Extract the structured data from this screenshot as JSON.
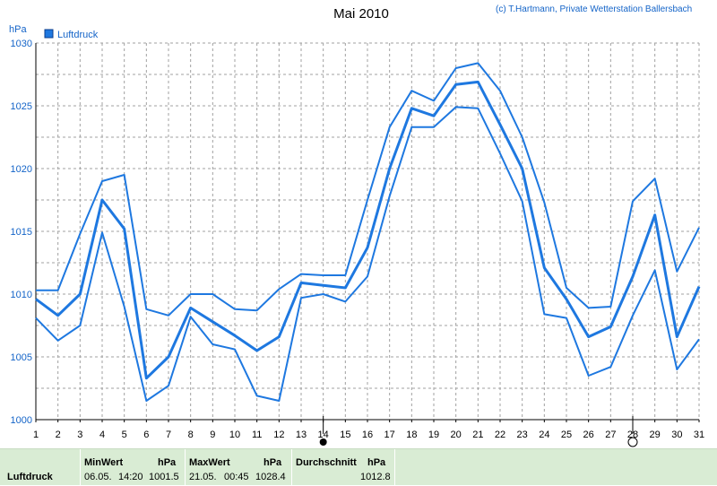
{
  "chart_data": {
    "type": "line",
    "title": "Mai 2010",
    "copyright": "(c) T.Hartmann, Private Wetterstation Ballersbach",
    "ylabel": "hPa",
    "ylim": [
      1000,
      1030
    ],
    "yticks": [
      1000,
      1005,
      1010,
      1015,
      1020,
      1025,
      1030
    ],
    "x": [
      1,
      2,
      3,
      4,
      5,
      6,
      7,
      8,
      9,
      10,
      11,
      12,
      13,
      14,
      15,
      16,
      17,
      18,
      19,
      20,
      21,
      22,
      23,
      24,
      25,
      26,
      27,
      28,
      29,
      30,
      31
    ],
    "grid": true,
    "legend": {
      "position": "top-left",
      "label": "Luftdruck",
      "color": "#1e78e0"
    },
    "series": [
      {
        "name": "Luftdruck",
        "role": "mean",
        "values": [
          1009.6,
          1008.3,
          1010.0,
          1017.5,
          1015.2,
          1003.3,
          1005.0,
          1008.9,
          1007.8,
          1006.7,
          1005.5,
          1006.6,
          1010.9,
          1010.7,
          1010.5,
          1013.7,
          1020.0,
          1024.8,
          1024.2,
          1026.7,
          1026.9,
          1023.5,
          1020.0,
          1012.1,
          1009.6,
          1006.6,
          1007.4,
          1011.4,
          1016.3,
          1006.6,
          1010.6
        ]
      },
      {
        "role": "max",
        "values": [
          1010.3,
          1010.3,
          1014.8,
          1019.0,
          1019.5,
          1008.8,
          1008.3,
          1010.0,
          1010.0,
          1008.8,
          1008.7,
          1010.4,
          1011.6,
          1011.5,
          1011.5,
          1017.5,
          1023.3,
          1026.2,
          1025.4,
          1028.0,
          1028.4,
          1026.2,
          1022.5,
          1017.3,
          1010.5,
          1008.9,
          1009.0,
          1017.4,
          1019.2,
          1011.8,
          1015.3
        ]
      },
      {
        "role": "min",
        "values": [
          1008.1,
          1006.3,
          1007.5,
          1014.9,
          1009.0,
          1001.5,
          1002.7,
          1008.2,
          1006.0,
          1005.6,
          1001.9,
          1001.5,
          1009.7,
          1010.0,
          1009.4,
          1011.4,
          1017.8,
          1023.3,
          1023.3,
          1024.9,
          1024.8,
          1021.2,
          1017.4,
          1008.4,
          1008.1,
          1003.5,
          1004.2,
          1008.3,
          1011.9,
          1004.0,
          1006.4
        ]
      }
    ],
    "moon_markers": [
      {
        "day": 14,
        "phase": "new-moon"
      },
      {
        "day": 28,
        "phase": "full-moon"
      }
    ],
    "colors": {
      "line": "#1e78e0",
      "grid": "#a0a0a0",
      "text_blue": "#1464c8",
      "footer_bg": "#d9ecd4"
    }
  },
  "footer": {
    "row_label": "Luftdruck",
    "min": {
      "header": "MinWert",
      "unit": "hPa",
      "date": "06.05.",
      "time": "14:20",
      "value": "1001.5"
    },
    "max": {
      "header": "MaxWert",
      "unit": "hPa",
      "date": "21.05.",
      "time": "00:45",
      "value": "1028.4"
    },
    "avg": {
      "header": "Durchschnitt",
      "unit": "hPa",
      "value": "1012.8"
    }
  }
}
